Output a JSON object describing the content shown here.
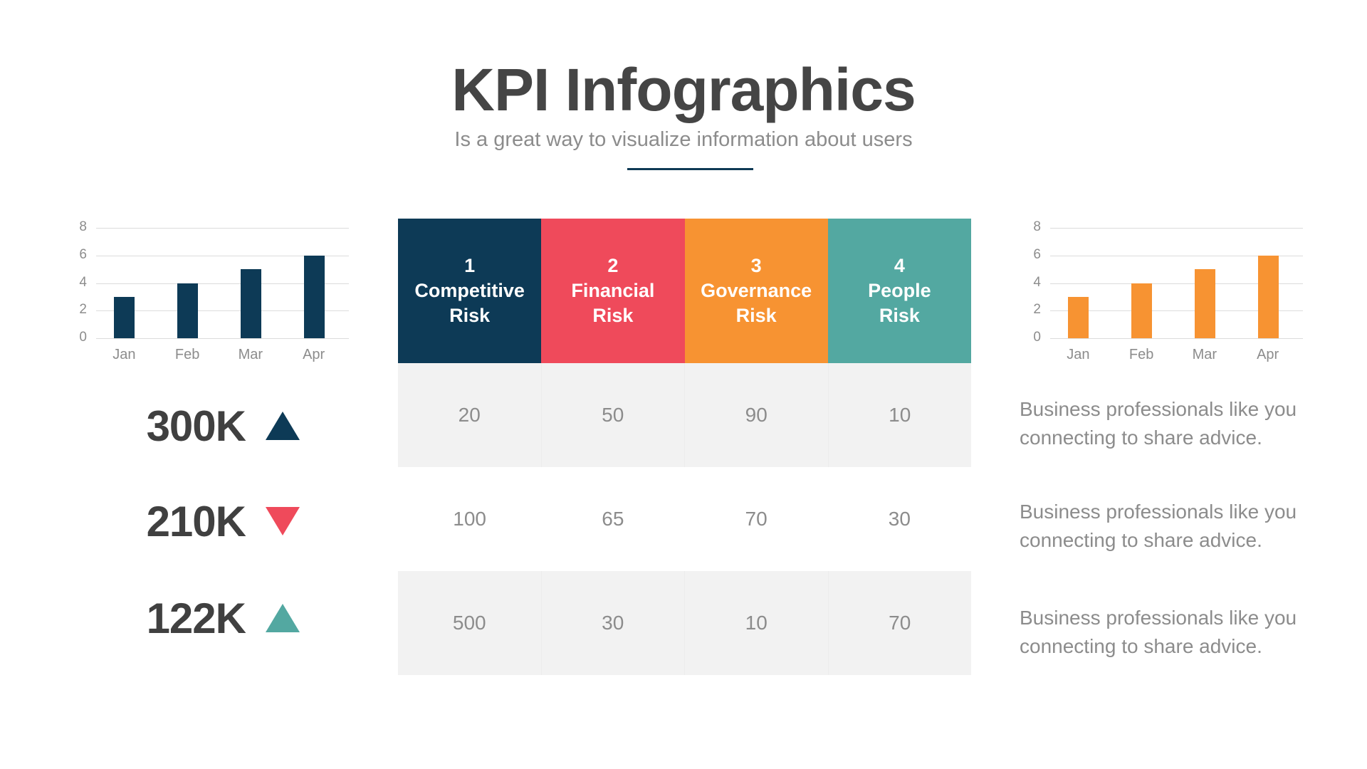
{
  "header": {
    "title": "KPI Infographics",
    "subtitle": "Is a great way to visualize information about users",
    "underline_color": "#0e3a55"
  },
  "colors": {
    "navy": "#0d3a56",
    "red": "#ef4a5b",
    "orange": "#f79332",
    "teal": "#53a8a1",
    "text_dark": "#404040",
    "text_gray": "#8c8c8c",
    "row_shade": "#f2f2f2"
  },
  "chart_data": [
    {
      "type": "bar",
      "title": "",
      "categories": [
        "Jan",
        "Feb",
        "Mar",
        "Apr"
      ],
      "values": [
        3,
        4,
        5,
        6
      ],
      "yticks": [
        "8",
        "6",
        "4",
        "2",
        "0"
      ],
      "ylim": [
        0,
        8
      ],
      "grid": true,
      "color": "#0d3a56",
      "position": "left"
    },
    {
      "type": "bar",
      "title": "",
      "categories": [
        "Jan",
        "Feb",
        "Mar",
        "Apr"
      ],
      "values": [
        3,
        4,
        5,
        6
      ],
      "yticks": [
        "8",
        "6",
        "4",
        "2",
        "0"
      ],
      "ylim": [
        0,
        8
      ],
      "grid": true,
      "color": "#f79332",
      "position": "right"
    },
    {
      "type": "table",
      "columns": [
        "1 Competitive Risk",
        "2 Financial Risk",
        "3 Governance Risk",
        "4 People Risk"
      ],
      "rows": [
        [
          20,
          50,
          90,
          10
        ],
        [
          100,
          65,
          70,
          30
        ],
        [
          500,
          30,
          10,
          70
        ]
      ]
    }
  ],
  "table": {
    "headers": [
      {
        "num": "1",
        "line1": "Competitive",
        "line2": "Risk",
        "color": "#0d3a56"
      },
      {
        "num": "2",
        "line1": "Financial",
        "line2": "Risk",
        "color": "#ef4a5b"
      },
      {
        "num": "3",
        "line1": "Governance",
        "line2": "Risk",
        "color": "#f79332"
      },
      {
        "num": "4",
        "line1": "People",
        "line2": "Risk",
        "color": "#53a8a1"
      }
    ],
    "rows": [
      [
        "20",
        "50",
        "90",
        "10"
      ],
      [
        "100",
        "65",
        "70",
        "30"
      ],
      [
        "500",
        "30",
        "10",
        "70"
      ]
    ]
  },
  "kpis": [
    {
      "value": "300K",
      "trend": "up",
      "icon": "triangle-up-icon",
      "color": "#0d3a56"
    },
    {
      "value": "210K",
      "trend": "down",
      "icon": "triangle-down-icon",
      "color": "#ef4a5b"
    },
    {
      "value": "122K",
      "trend": "up",
      "icon": "triangle-up-icon",
      "color": "#53a8a1"
    }
  ],
  "descriptions": [
    {
      "line1": "Business professionals like you",
      "line2": "connecting to share advice."
    },
    {
      "line1": "Business professionals like you",
      "line2": "connecting to share advice."
    },
    {
      "line1": "Business professionals like you",
      "line2": "connecting to share advice."
    }
  ]
}
